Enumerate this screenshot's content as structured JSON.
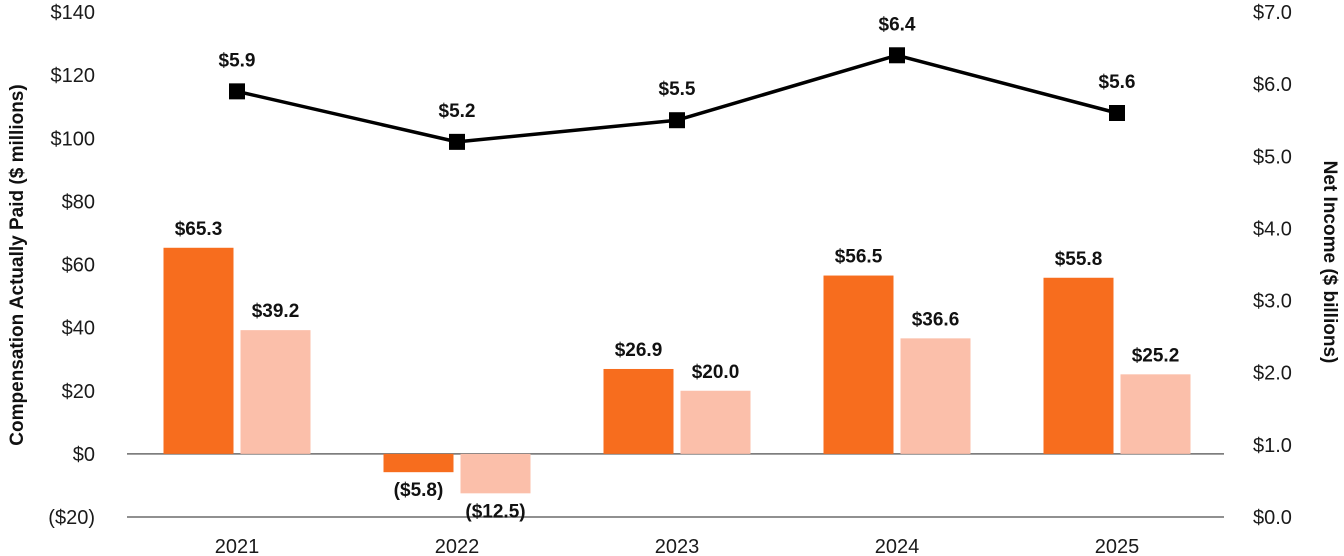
{
  "chart_data": {
    "type": "bar",
    "categories": [
      "2021",
      "2022",
      "2023",
      "2024",
      "2025"
    ],
    "series": [
      {
        "values": [
          65.3,
          -5.8,
          26.9,
          56.5,
          55.8
        ],
        "labels": [
          "$65.3",
          "($5.8)",
          "$26.9",
          "$56.5",
          "$55.8"
        ],
        "color": "#f76d1e",
        "axis": "left"
      },
      {
        "values": [
          39.2,
          -12.5,
          20.0,
          36.6,
          25.2
        ],
        "labels": [
          "$39.2",
          "($12.5)",
          "$20.0",
          "$36.6",
          "$25.2"
        ],
        "color": "#fbbfaa",
        "axis": "left"
      },
      {
        "type": "line",
        "values": [
          5.9,
          5.2,
          5.5,
          6.4,
          5.6
        ],
        "labels": [
          "$5.9",
          "$5.2",
          "$5.5",
          "$6.4",
          "$5.6"
        ],
        "color": "#000000",
        "axis": "right"
      }
    ],
    "ylabel": "Compensation Actually Paid ($ millions)",
    "y2label": "Net Income  ($ billions)",
    "ylim": [
      -20,
      140
    ],
    "y2lim": [
      0,
      7
    ],
    "yticks": [
      140,
      120,
      100,
      80,
      60,
      40,
      20,
      0,
      -20
    ],
    "ytick_labels": [
      "$140",
      "$120",
      "$100",
      "$80",
      "$60",
      "$40",
      "$20",
      "$0",
      "($20)"
    ],
    "y2ticks": [
      7,
      6,
      5,
      4,
      3,
      2,
      1,
      0
    ],
    "y2tick_labels": [
      "$7.0",
      "$6.0",
      "$5.0",
      "$4.0",
      "$3.0",
      "$2.0",
      "$1.0",
      "$0.0"
    ],
    "grid": false,
    "legend": "none"
  }
}
